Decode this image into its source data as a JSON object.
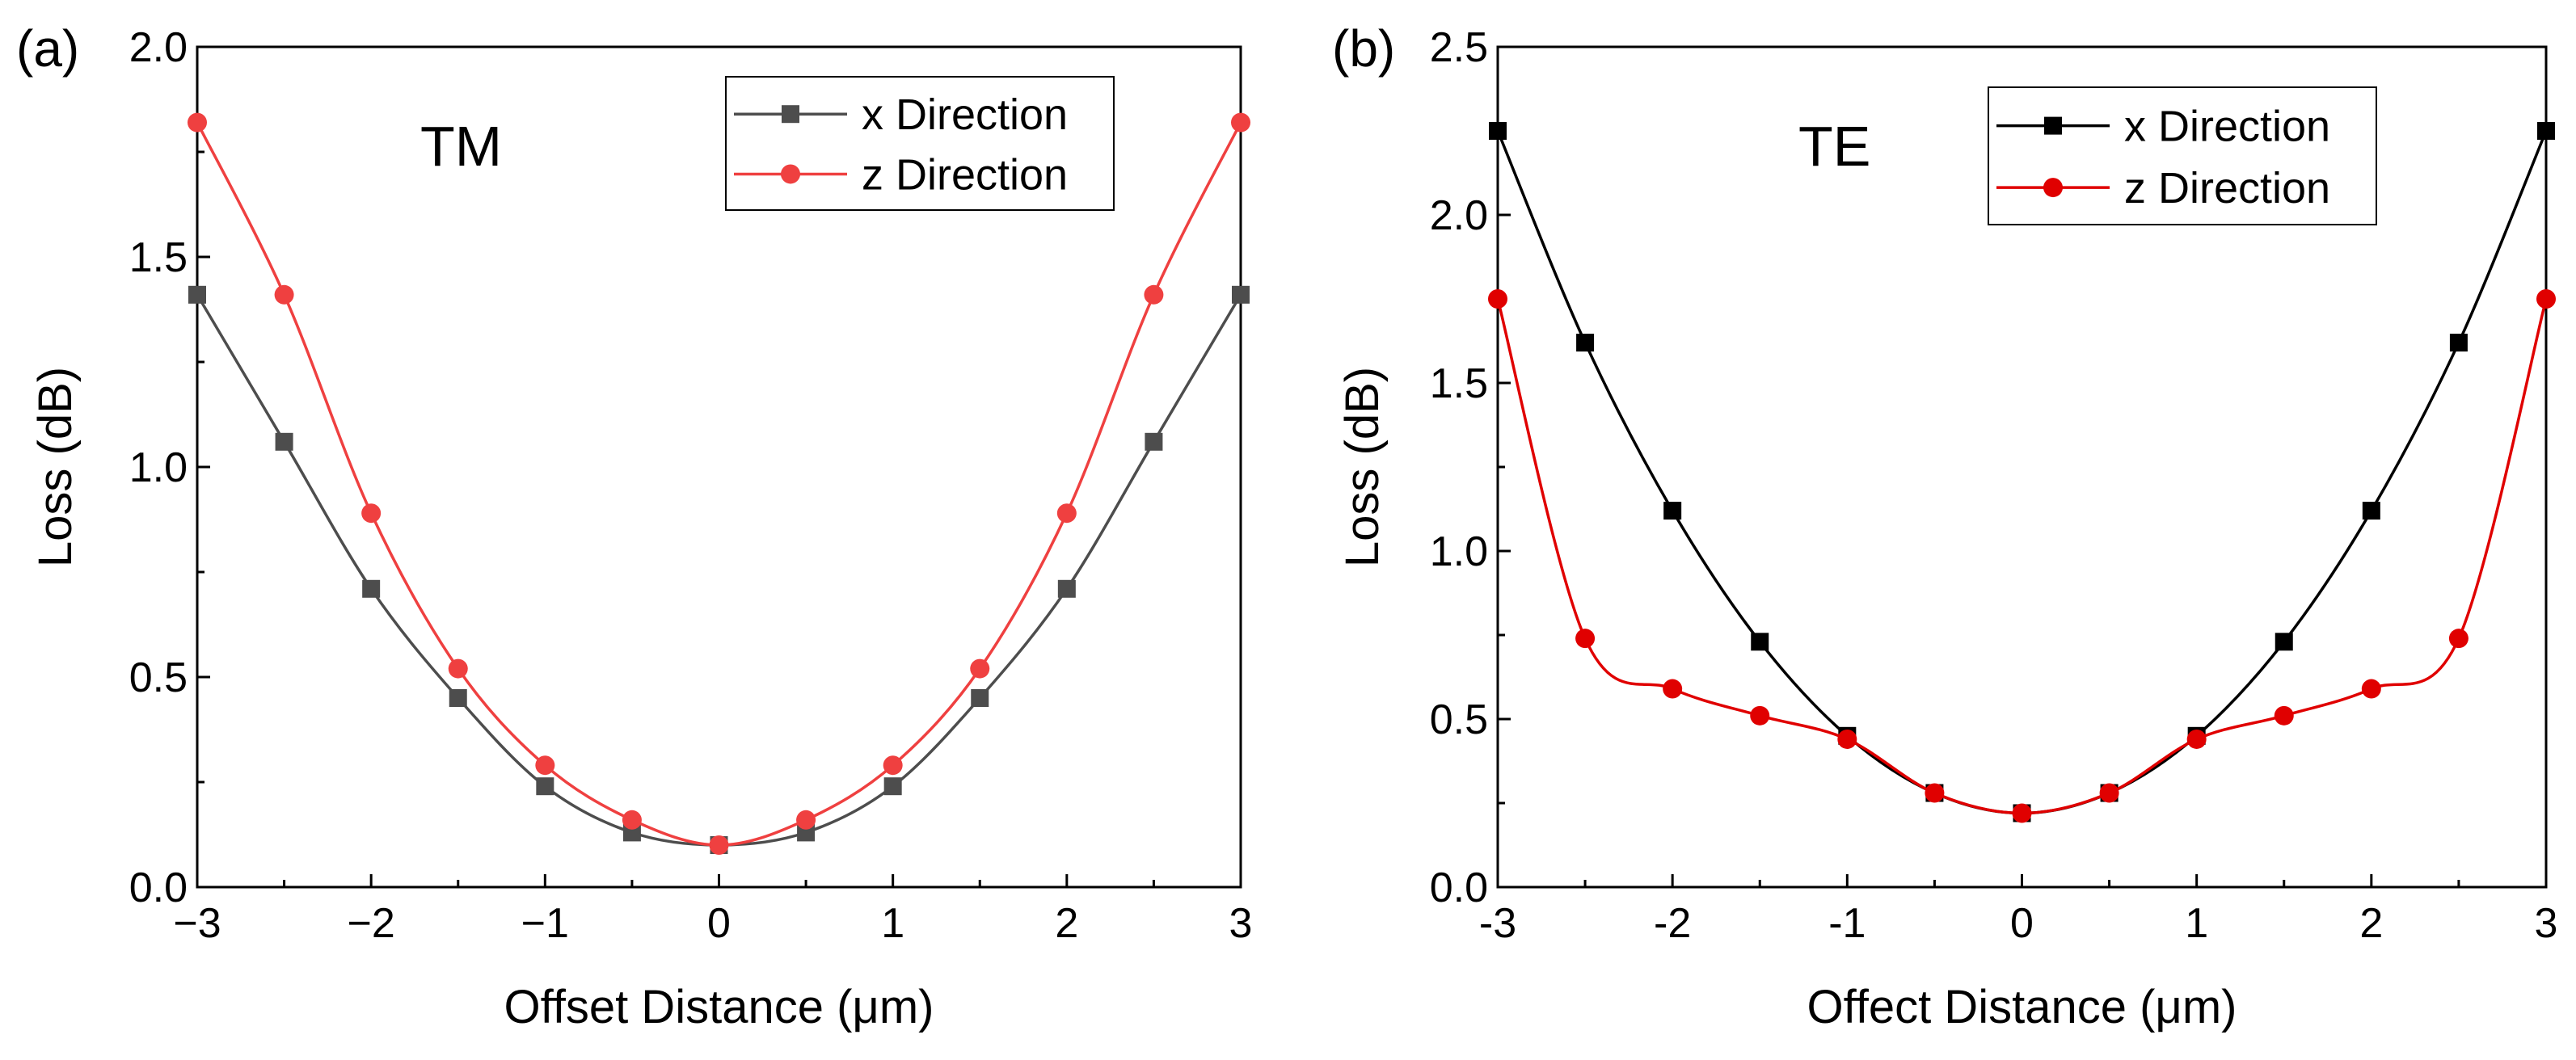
{
  "chart_data": [
    {
      "panel_label": "(a)",
      "type": "line",
      "annotation": "TM",
      "xlabel": "Offset Distance (μm)",
      "ylabel": "Loss (dB)",
      "xlim": [
        -3,
        3
      ],
      "ylim": [
        0,
        2.0
      ],
      "xticks": [
        -3,
        -2,
        -1,
        0,
        1,
        2,
        3
      ],
      "xtick_labels": [
        "−3",
        "−2",
        "−1",
        "0",
        "1",
        "2",
        "3"
      ],
      "yticks": [
        0,
        0.5,
        1.0,
        1.5,
        2.0
      ],
      "ytick_labels": [
        "0.0",
        "0.5",
        "1.0",
        "1.5",
        "2.0"
      ],
      "legend_position": "top-right",
      "x": [
        -3,
        -2.5,
        -2,
        -1.5,
        -1,
        -0.5,
        0,
        0.5,
        1,
        1.5,
        2,
        2.5,
        3
      ],
      "series": [
        {
          "name": "x Direction",
          "color": "#4d4d4d",
          "marker": "square",
          "values": [
            1.41,
            1.06,
            0.71,
            0.45,
            0.24,
            0.13,
            0.1,
            0.13,
            0.24,
            0.45,
            0.71,
            1.06,
            1.41
          ]
        },
        {
          "name": "z Direction",
          "color": "#ef4040",
          "marker": "circle",
          "values": [
            1.82,
            1.41,
            0.89,
            0.52,
            0.29,
            0.16,
            0.1,
            0.16,
            0.29,
            0.52,
            0.89,
            1.41,
            1.82
          ]
        }
      ]
    },
    {
      "panel_label": "(b)",
      "type": "line",
      "annotation": "TE",
      "xlabel": "Offect Distance (μm)",
      "ylabel": "Loss (dB)",
      "xlim": [
        -3,
        3
      ],
      "ylim": [
        0,
        2.5
      ],
      "xticks": [
        -3,
        -2,
        -1,
        0,
        1,
        2,
        3
      ],
      "xtick_labels": [
        "-3",
        "-2",
        "-1",
        "0",
        "1",
        "2",
        "3"
      ],
      "yticks": [
        0,
        0.5,
        1.0,
        1.5,
        2.0,
        2.5
      ],
      "ytick_labels": [
        "0.0",
        "0.5",
        "1.0",
        "1.5",
        "2.0",
        "2.5"
      ],
      "legend_position": "top-right",
      "x": [
        -3,
        -2.5,
        -2,
        -1.5,
        -1,
        -0.5,
        0,
        0.5,
        1,
        1.5,
        2,
        2.5,
        3
      ],
      "series": [
        {
          "name": "x Direction",
          "color": "#000000",
          "marker": "square",
          "values": [
            2.25,
            1.62,
            1.12,
            0.73,
            0.45,
            0.28,
            0.22,
            0.28,
            0.45,
            0.73,
            1.12,
            1.62,
            2.25
          ]
        },
        {
          "name": "z Direction",
          "color": "#e00000",
          "marker": "circle",
          "values": [
            1.75,
            0.74,
            0.59,
            0.51,
            0.44,
            0.28,
            0.22,
            0.28,
            0.44,
            0.51,
            0.59,
            0.74,
            1.75
          ]
        }
      ]
    }
  ]
}
